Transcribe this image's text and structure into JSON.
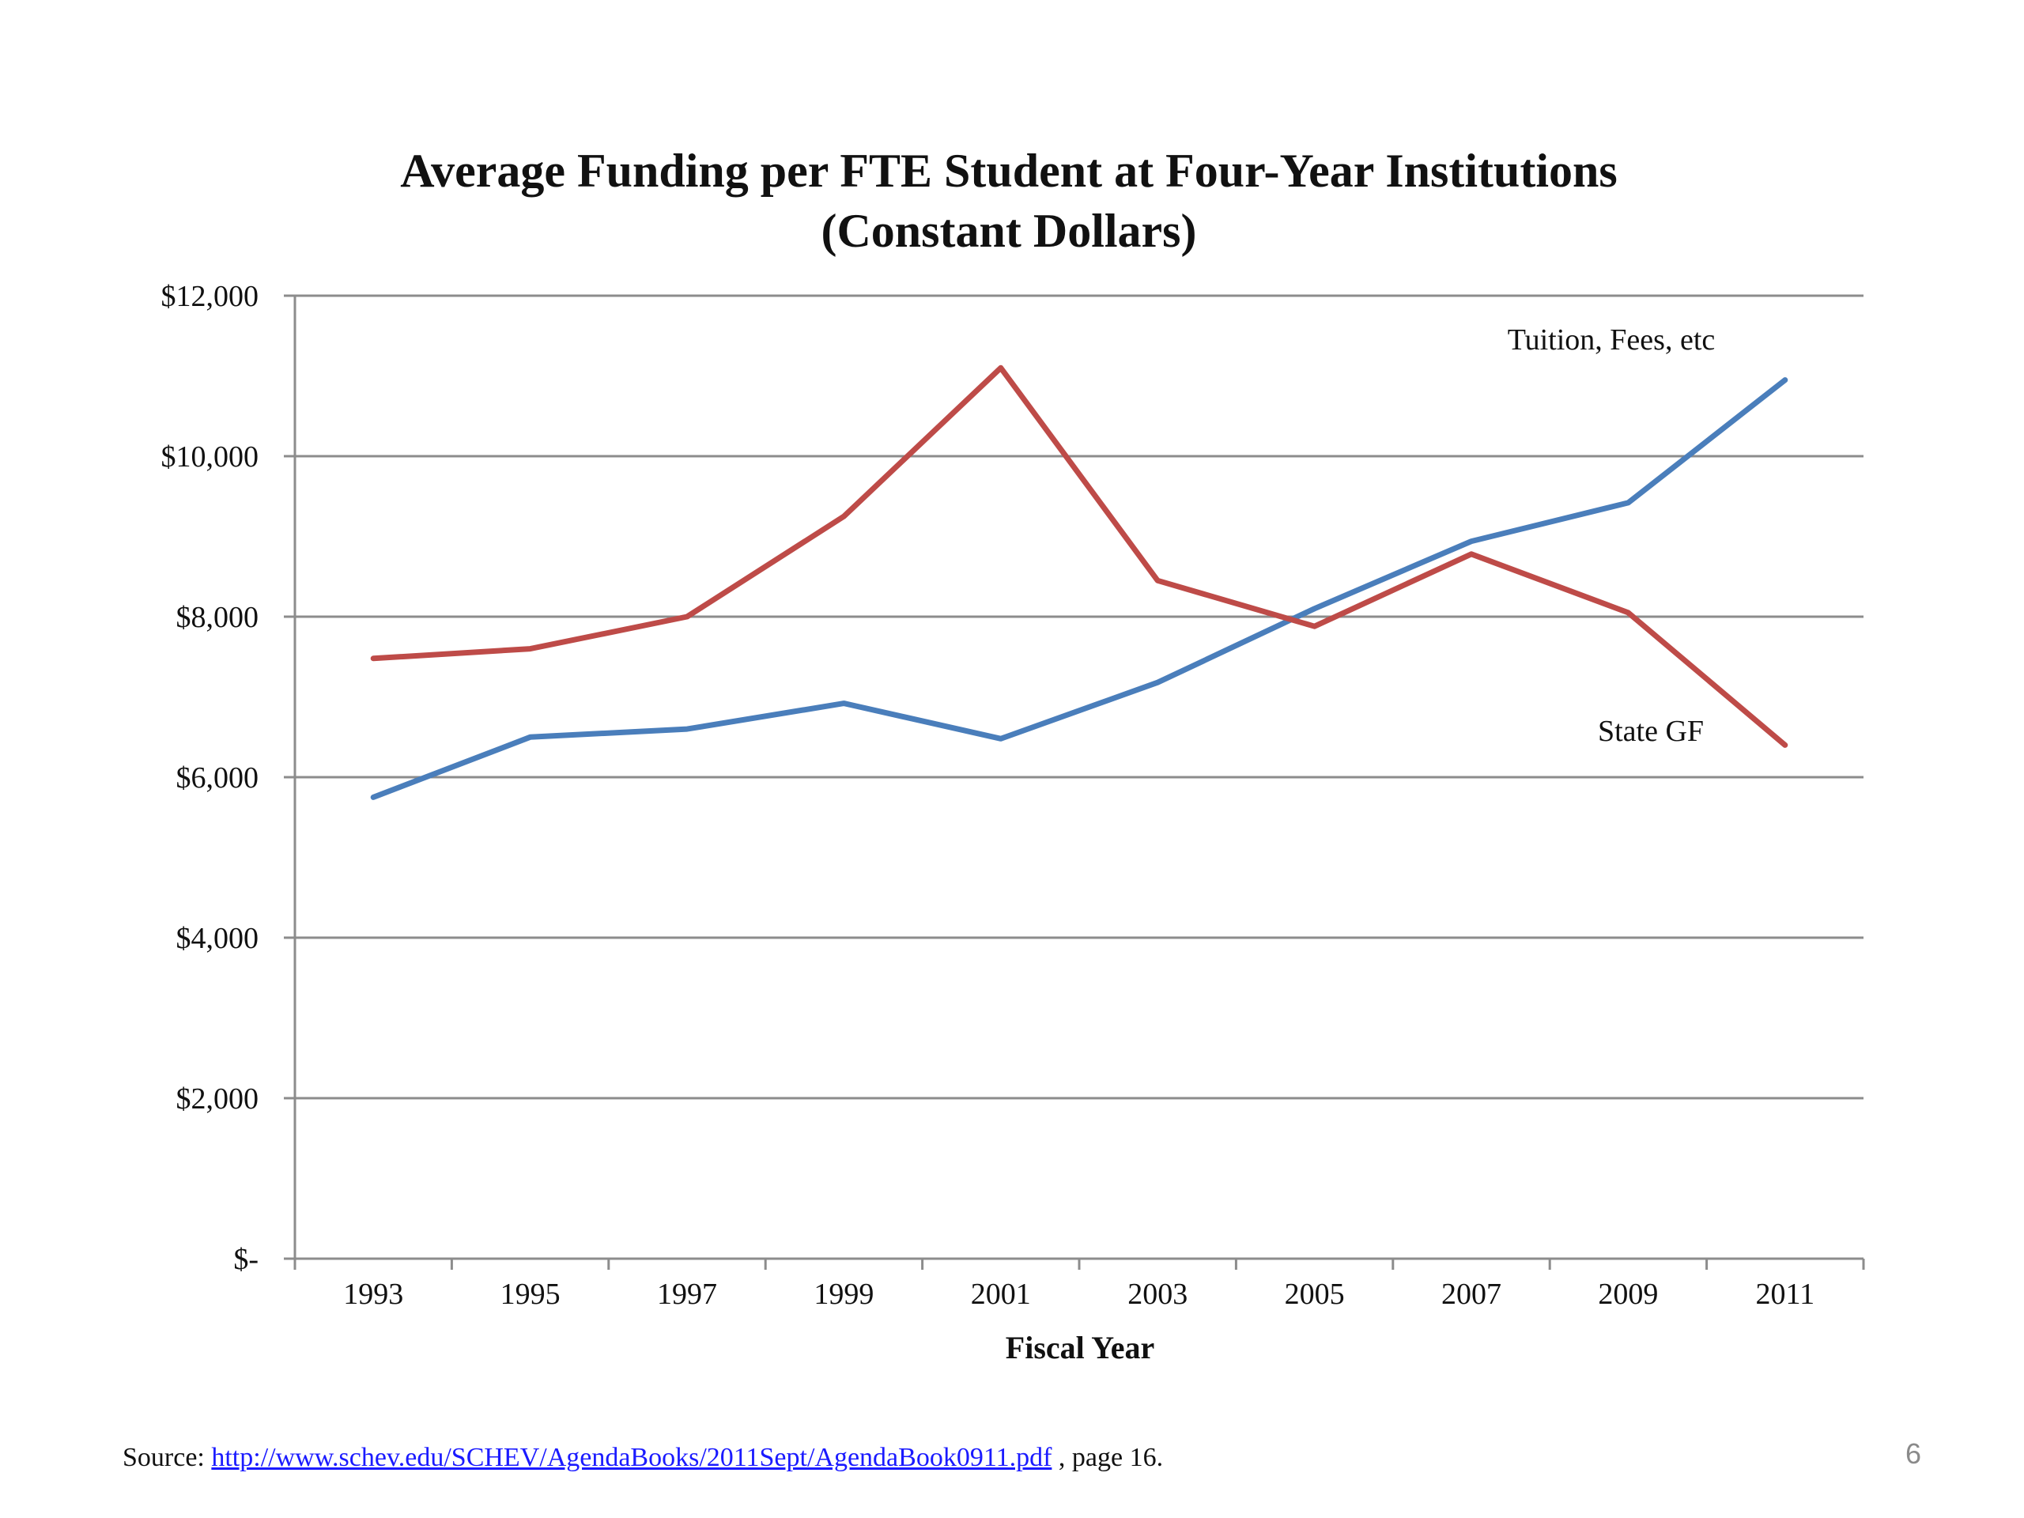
{
  "chart_data": {
    "type": "line",
    "title": "Average Funding per FTE Student at Four-Year Institutions",
    "subtitle": "(Constant Dollars)",
    "xlabel": "Fiscal Year",
    "ylabel": "",
    "categories": [
      "1993",
      "1995",
      "1997",
      "1999",
      "2001",
      "2003",
      "2005",
      "2007",
      "2009",
      "2011"
    ],
    "ylim": [
      0,
      12000
    ],
    "yticks": [
      0,
      2000,
      4000,
      6000,
      8000,
      10000,
      12000
    ],
    "ytick_labels": [
      "$-",
      "$2,000",
      "$4,000",
      "$6,000",
      "$8,000",
      "$10,000",
      "$12,000"
    ],
    "grid": true,
    "series": [
      {
        "name": "Tuition, Fees, etc",
        "color": "#4a7ebb",
        "values": [
          5750,
          6500,
          6600,
          6920,
          6480,
          7180,
          8100,
          8940,
          9420,
          10950
        ]
      },
      {
        "name": "State GF",
        "color": "#be4b48",
        "values": [
          7480,
          7600,
          8000,
          9250,
          11100,
          8450,
          7880,
          8780,
          8050,
          6400
        ]
      }
    ]
  },
  "footer": {
    "source_prefix": "Source: ",
    "source_link": "http://www.schev.edu/SCHEV/AgendaBooks/2011Sept/AgendaBook0911.pdf",
    "source_suffix": " , page 16.",
    "page_number": "6"
  }
}
